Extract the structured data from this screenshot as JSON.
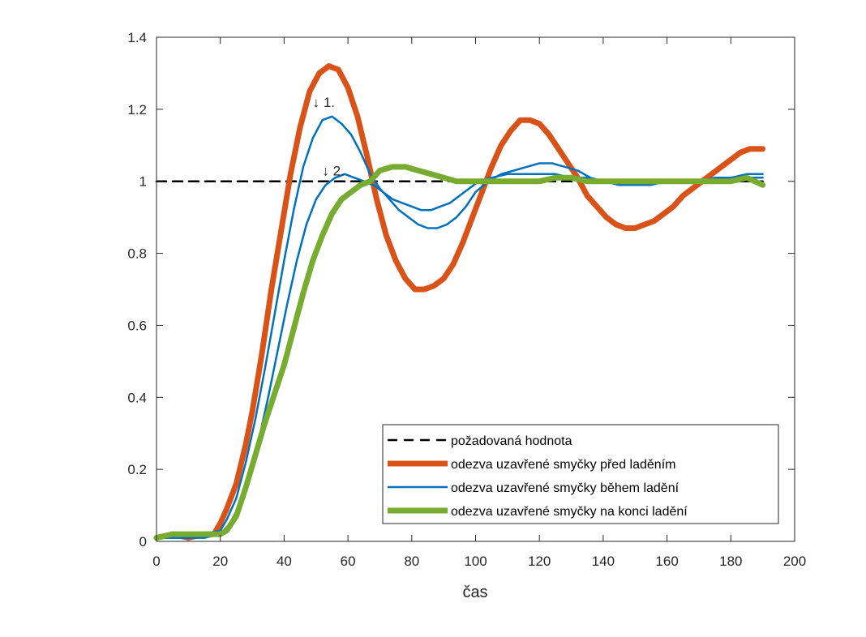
{
  "chart_data": {
    "type": "line",
    "title": "",
    "xlabel": "čas",
    "ylabel": "",
    "xlim": [
      0,
      200
    ],
    "ylim": [
      0,
      1.4
    ],
    "xticks": [
      0,
      20,
      40,
      60,
      80,
      100,
      120,
      140,
      160,
      180,
      200
    ],
    "yticks": [
      0,
      0.2,
      0.4,
      0.6,
      0.8,
      1,
      1.2,
      1.4
    ],
    "xtick_labels": [
      "0",
      "20",
      "40",
      "60",
      "80",
      "100",
      "120",
      "140",
      "160",
      "180",
      "200"
    ],
    "ytick_labels": [
      "0",
      "0.2",
      "0.4",
      "0.6",
      "0.8",
      "1",
      "1.2",
      "1.4"
    ],
    "grid": false,
    "legend_position": "bottom-right",
    "series": [
      {
        "name": "požadovaná hodnota",
        "color": "#000000",
        "style": "dashed",
        "x": [
          0,
          190
        ],
        "y": [
          1,
          1
        ]
      },
      {
        "name": "odezva uzavřené smyčky před laděním",
        "color": "#d95319",
        "style": "solid",
        "x": [
          0,
          5,
          10,
          15,
          18,
          20,
          22,
          25,
          28,
          30,
          33,
          36,
          39,
          42,
          45,
          48,
          51,
          54,
          57,
          60,
          63,
          66,
          69,
          72,
          75,
          78,
          81,
          84,
          87,
          90,
          93,
          96,
          99,
          102,
          105,
          108,
          111,
          114,
          117,
          120,
          123,
          126,
          129,
          132,
          135,
          138,
          141,
          144,
          147,
          150,
          153,
          156,
          159,
          162,
          165,
          168,
          171,
          174,
          177,
          180,
          183,
          186,
          190
        ],
        "y": [
          0.01,
          0.02,
          0.01,
          0.02,
          0.02,
          0.05,
          0.09,
          0.16,
          0.27,
          0.36,
          0.52,
          0.7,
          0.86,
          1.02,
          1.15,
          1.25,
          1.3,
          1.32,
          1.31,
          1.26,
          1.18,
          1.07,
          0.95,
          0.85,
          0.78,
          0.73,
          0.7,
          0.7,
          0.71,
          0.73,
          0.77,
          0.83,
          0.9,
          0.97,
          1.04,
          1.1,
          1.14,
          1.17,
          1.17,
          1.16,
          1.13,
          1.09,
          1.05,
          1.01,
          0.96,
          0.93,
          0.9,
          0.88,
          0.87,
          0.87,
          0.88,
          0.89,
          0.91,
          0.93,
          0.96,
          0.98,
          1.0,
          1.02,
          1.04,
          1.06,
          1.08,
          1.09,
          1.09
        ]
      },
      {
        "name": "odezva uzavřené smyčky během ladění",
        "color": "#0072bd",
        "style": "solid",
        "x": [
          0,
          5,
          10,
          15,
          20,
          22,
          25,
          28,
          31,
          34,
          37,
          40,
          43,
          46,
          49,
          52,
          55,
          58,
          61,
          64,
          67,
          70,
          73,
          76,
          79,
          82,
          85,
          88,
          91,
          94,
          97,
          100,
          104,
          108,
          112,
          116,
          120,
          124,
          128,
          132,
          136,
          140,
          145,
          150,
          155,
          160,
          165,
          170,
          175,
          180,
          185,
          190
        ],
        "y": [
          0.01,
          0.01,
          0.01,
          0.02,
          0.03,
          0.06,
          0.12,
          0.22,
          0.34,
          0.48,
          0.63,
          0.78,
          0.92,
          1.04,
          1.12,
          1.17,
          1.18,
          1.16,
          1.13,
          1.08,
          1.02,
          0.98,
          0.95,
          0.92,
          0.9,
          0.88,
          0.87,
          0.87,
          0.88,
          0.9,
          0.93,
          0.97,
          1.0,
          1.02,
          1.03,
          1.04,
          1.05,
          1.05,
          1.04,
          1.03,
          1.01,
          1.0,
          0.99,
          0.99,
          0.99,
          1.0,
          1.0,
          1.0,
          1.01,
          1.01,
          1.02,
          1.02
        ]
      },
      {
        "name": "odezva uzavřené smyčky během ladění",
        "color": "#0072bd",
        "style": "solid",
        "x": [
          0,
          5,
          10,
          15,
          20,
          23,
          26,
          29,
          32,
          35,
          38,
          41,
          44,
          47,
          50,
          53,
          56,
          59,
          62,
          65,
          68,
          71,
          74,
          77,
          80,
          83,
          86,
          89,
          92,
          95,
          98,
          101,
          105,
          110,
          115,
          120,
          125,
          130,
          135,
          140,
          145,
          150,
          155,
          160,
          165,
          170,
          175,
          180,
          185,
          190
        ],
        "y": [
          0.01,
          0.01,
          0.01,
          0.01,
          0.02,
          0.05,
          0.1,
          0.18,
          0.28,
          0.4,
          0.53,
          0.66,
          0.78,
          0.88,
          0.95,
          0.99,
          1.01,
          1.02,
          1.01,
          1.0,
          0.99,
          0.97,
          0.95,
          0.94,
          0.93,
          0.92,
          0.92,
          0.93,
          0.94,
          0.96,
          0.98,
          1.0,
          1.01,
          1.02,
          1.02,
          1.02,
          1.02,
          1.01,
          1.01,
          1.0,
          1.0,
          1.0,
          1.0,
          1.0,
          1.0,
          1.0,
          1.0,
          1.0,
          1.01,
          1.01
        ]
      },
      {
        "name": "odezva uzavřené smyčky na konci ladění",
        "color": "#77ac30",
        "style": "solid",
        "x": [
          0,
          5,
          10,
          15,
          20,
          22,
          25,
          28,
          31,
          34,
          37,
          40,
          43,
          46,
          49,
          52,
          55,
          58,
          61,
          64,
          67,
          70,
          74,
          78,
          82,
          86,
          90,
          94,
          98,
          102,
          106,
          110,
          115,
          120,
          125,
          130,
          135,
          140,
          145,
          150,
          155,
          160,
          165,
          170,
          175,
          180,
          185,
          190
        ],
        "y": [
          0.01,
          0.02,
          0.02,
          0.02,
          0.02,
          0.03,
          0.07,
          0.15,
          0.24,
          0.33,
          0.41,
          0.49,
          0.59,
          0.69,
          0.78,
          0.85,
          0.91,
          0.95,
          0.97,
          0.99,
          1.0,
          1.03,
          1.04,
          1.04,
          1.03,
          1.02,
          1.01,
          1.0,
          1.0,
          1.0,
          1.0,
          1.0,
          1.0,
          1.0,
          1.01,
          1.01,
          1.0,
          1.0,
          1.0,
          1.0,
          1.0,
          1.0,
          1.0,
          1.0,
          1.0,
          1.0,
          1.01,
          0.99
        ]
      }
    ],
    "annotations": [
      {
        "text": "↓ 1.",
        "x": 52,
        "y": 1.22
      },
      {
        "text": "↓ 2.",
        "x": 55,
        "y": 1.03
      }
    ],
    "legend_entries": [
      "požadovaná hodnota",
      "odezva uzavřené smyčky před laděním",
      "odezva uzavřené smyčky během ladění",
      "odezva uzavřené smyčky na konci ladění"
    ]
  }
}
